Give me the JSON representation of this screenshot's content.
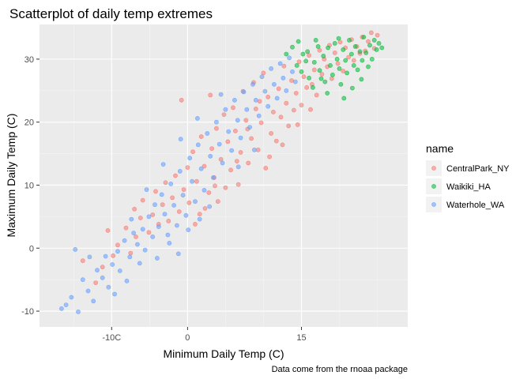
{
  "chart_data": {
    "type": "scatter",
    "title": "Scatterplot of daily temp extremes",
    "xlabel": "Minimum Daily Temp (C)",
    "ylabel": "Maximum Daily Temp (C)",
    "caption": "Data come from the rnoaa package",
    "xlim": [
      -19.5,
      29.0
    ],
    "ylim": [
      -12.5,
      35.5
    ],
    "x_ticks": [
      -10,
      0,
      15
    ],
    "x_tick_labels": [
      "-10C",
      "0",
      "15"
    ],
    "x_minor_ticks": [
      -15,
      -5,
      5,
      10,
      20,
      25
    ],
    "y_ticks": [
      -10,
      0,
      10,
      20,
      30
    ],
    "y_tick_labels": [
      "-10",
      "0",
      "10",
      "20",
      "30"
    ],
    "y_minor_ticks": [
      -5,
      5,
      15,
      25
    ],
    "grid": true,
    "legend": {
      "title": "name",
      "placement": "right",
      "entries": [
        "CentralPark_NY",
        "Waikiki_HA",
        "Waterhole_WA"
      ]
    },
    "series": [
      {
        "name": "CentralPark_NY",
        "color": "#F8766D",
        "points": [
          [
            -13.8,
            -2.0
          ],
          [
            -12.1,
            -5.5
          ],
          [
            -11.2,
            -3.0
          ],
          [
            -10.5,
            2.8
          ],
          [
            -9.8,
            -1.2
          ],
          [
            -9.2,
            0.5
          ],
          [
            -8.1,
            3.2
          ],
          [
            -7.5,
            -0.8
          ],
          [
            -7.0,
            6.2
          ],
          [
            -6.8,
            1.8
          ],
          [
            -6.2,
            4.8
          ],
          [
            -5.9,
            7.6
          ],
          [
            -5.1,
            2.5
          ],
          [
            -4.6,
            5.3
          ],
          [
            -4.2,
            9.0
          ],
          [
            -3.8,
            3.8
          ],
          [
            -3.3,
            6.9
          ],
          [
            -2.9,
            10.4
          ],
          [
            -2.5,
            4.3
          ],
          [
            -2.0,
            8.0
          ],
          [
            -1.6,
            11.5
          ],
          [
            -1.1,
            5.8
          ],
          [
            -0.8,
            23.5
          ],
          [
            -0.5,
            9.3
          ],
          [
            0.0,
            12.8
          ],
          [
            0.2,
            7.2
          ],
          [
            0.7,
            15.3
          ],
          [
            1.0,
            3.8
          ],
          [
            1.2,
            10.6
          ],
          [
            1.6,
            5.4
          ],
          [
            1.8,
            17.7
          ],
          [
            2.2,
            13.0
          ],
          [
            2.3,
            6.3
          ],
          [
            2.8,
            8.8
          ],
          [
            3.0,
            24.3
          ],
          [
            3.2,
            15.8
          ],
          [
            3.5,
            11.2
          ],
          [
            3.8,
            19.0
          ],
          [
            4.0,
            7.4
          ],
          [
            4.4,
            14.1
          ],
          [
            4.8,
            21.2
          ],
          [
            5.0,
            9.6
          ],
          [
            5.3,
            16.9
          ],
          [
            5.7,
            12.4
          ],
          [
            6.0,
            22.3
          ],
          [
            6.3,
            18.6
          ],
          [
            6.7,
            10.1
          ],
          [
            7.0,
            15.2
          ],
          [
            7.3,
            24.9
          ],
          [
            7.7,
            20.3
          ],
          [
            8.0,
            13.5
          ],
          [
            8.4,
            17.4
          ],
          [
            8.7,
            26.3
          ],
          [
            9.0,
            22.1
          ],
          [
            9.3,
            15.6
          ],
          [
            9.7,
            19.9
          ],
          [
            10.0,
            27.8
          ],
          [
            10.3,
            12.7
          ],
          [
            10.6,
            24.0
          ],
          [
            11.0,
            18.2
          ],
          [
            11.3,
            21.6
          ],
          [
            11.7,
            17.0
          ],
          [
            12.0,
            25.3
          ],
          [
            12.3,
            20.8
          ],
          [
            12.7,
            28.9
          ],
          [
            13.0,
            23.0
          ],
          [
            13.3,
            19.4
          ],
          [
            13.7,
            26.6
          ],
          [
            14.0,
            21.9
          ],
          [
            14.3,
            24.6
          ],
          [
            14.7,
            29.6
          ],
          [
            15.0,
            22.7
          ],
          [
            15.3,
            27.2
          ],
          [
            15.7,
            25.5
          ],
          [
            16.0,
            30.6
          ],
          [
            16.4,
            26.0
          ],
          [
            16.7,
            28.3
          ],
          [
            17.0,
            24.3
          ],
          [
            17.4,
            31.4
          ],
          [
            17.7,
            27.6
          ],
          [
            18.0,
            30.0
          ],
          [
            18.4,
            28.8
          ],
          [
            18.7,
            32.2
          ],
          [
            19.0,
            26.9
          ],
          [
            19.4,
            31.0
          ],
          [
            19.8,
            29.3
          ],
          [
            20.1,
            32.7
          ],
          [
            20.5,
            28.1
          ],
          [
            20.8,
            31.8
          ],
          [
            21.2,
            30.3
          ],
          [
            21.6,
            33.1
          ],
          [
            21.9,
            29.8
          ],
          [
            22.3,
            32.0
          ],
          [
            22.7,
            30.9
          ],
          [
            23.0,
            33.5
          ],
          [
            23.4,
            31.3
          ],
          [
            23.8,
            32.8
          ],
          [
            24.2,
            34.2
          ],
          [
            24.6,
            31.7
          ],
          [
            25.0,
            33.8
          ],
          [
            9.5,
            23.3
          ],
          [
            6.5,
            13.8
          ],
          [
            3.6,
            9.9
          ],
          [
            12.5,
            16.4
          ],
          [
            7.9,
            18.9
          ],
          [
            14.5,
            19.6
          ],
          [
            16.2,
            22.0
          ],
          [
            10.8,
            14.5
          ]
        ]
      },
      {
        "name": "Waikiki_HA",
        "color": "#00BA38",
        "points": [
          [
            13.0,
            30.8
          ],
          [
            13.8,
            31.9
          ],
          [
            14.4,
            29.0
          ],
          [
            15.0,
            28.0
          ],
          [
            15.2,
            30.8
          ],
          [
            15.8,
            31.2
          ],
          [
            16.0,
            27.0
          ],
          [
            16.5,
            25.5
          ],
          [
            16.7,
            29.5
          ],
          [
            17.2,
            32.0
          ],
          [
            17.4,
            28.2
          ],
          [
            17.9,
            30.5
          ],
          [
            18.1,
            26.4
          ],
          [
            18.5,
            31.8
          ],
          [
            18.8,
            29.0
          ],
          [
            19.1,
            27.5
          ],
          [
            19.4,
            32.5
          ],
          [
            19.7,
            30.0
          ],
          [
            20.0,
            28.5
          ],
          [
            20.2,
            26.0
          ],
          [
            20.5,
            31.5
          ],
          [
            20.8,
            29.8
          ],
          [
            21.0,
            27.8
          ],
          [
            21.3,
            33.0
          ],
          [
            21.6,
            30.8
          ],
          [
            21.9,
            29.0
          ],
          [
            22.1,
            32.0
          ],
          [
            22.4,
            28.3
          ],
          [
            22.7,
            31.2
          ],
          [
            23.0,
            29.8
          ],
          [
            23.2,
            33.5
          ],
          [
            23.5,
            31.0
          ],
          [
            23.8,
            28.8
          ],
          [
            24.0,
            32.2
          ],
          [
            24.3,
            30.0
          ],
          [
            24.6,
            33.0
          ],
          [
            24.9,
            31.5
          ],
          [
            25.2,
            32.5
          ],
          [
            25.6,
            31.8
          ],
          [
            18.4,
            24.6
          ],
          [
            20.6,
            23.8
          ],
          [
            16.9,
            33.0
          ],
          [
            14.6,
            32.8
          ],
          [
            19.9,
            33.3
          ],
          [
            22.9,
            26.8
          ],
          [
            17.6,
            26.9
          ],
          [
            21.7,
            25.4
          ],
          [
            15.6,
            29.7
          ]
        ]
      },
      {
        "name": "Waterhole_WA",
        "color": "#619CFF",
        "points": [
          [
            -16.6,
            -9.6
          ],
          [
            -16.0,
            -9.0
          ],
          [
            -15.3,
            -7.8
          ],
          [
            -14.4,
            -10.1
          ],
          [
            -13.8,
            -5.0
          ],
          [
            -13.1,
            -6.8
          ],
          [
            -12.4,
            -8.4
          ],
          [
            -11.9,
            -3.5
          ],
          [
            -11.2,
            -4.7
          ],
          [
            -10.8,
            -1.3
          ],
          [
            -10.4,
            -6.2
          ],
          [
            -9.9,
            -2.6
          ],
          [
            -9.2,
            -0.5
          ],
          [
            -8.9,
            -3.6
          ],
          [
            -8.3,
            1.2
          ],
          [
            -7.6,
            -1.4
          ],
          [
            -7.1,
            2.4
          ],
          [
            -6.6,
            0.6
          ],
          [
            -5.9,
            3.0
          ],
          [
            -5.6,
            -0.3
          ],
          [
            -5.1,
            5.0
          ],
          [
            -4.6,
            1.8
          ],
          [
            -4.3,
            6.9
          ],
          [
            -3.8,
            3.4
          ],
          [
            -3.4,
            8.5
          ],
          [
            -3.0,
            5.4
          ],
          [
            -2.6,
            2.1
          ],
          [
            -2.2,
            10.2
          ],
          [
            -1.8,
            6.8
          ],
          [
            -1.4,
            3.6
          ],
          [
            -1.0,
            12.2
          ],
          [
            -0.6,
            8.4
          ],
          [
            -0.2,
            5.2
          ],
          [
            0.3,
            14.3
          ],
          [
            0.6,
            10.6
          ],
          [
            1.0,
            7.4
          ],
          [
            1.4,
            16.4
          ],
          [
            1.8,
            12.6
          ],
          [
            2.2,
            9.2
          ],
          [
            2.6,
            18.2
          ],
          [
            3.0,
            14.6
          ],
          [
            3.4,
            11.2
          ],
          [
            3.8,
            20.0
          ],
          [
            4.2,
            16.5
          ],
          [
            4.6,
            13.5
          ],
          [
            5.0,
            22.0
          ],
          [
            5.4,
            18.5
          ],
          [
            5.8,
            15.5
          ],
          [
            6.2,
            23.5
          ],
          [
            6.6,
            20.3
          ],
          [
            7.0,
            17.5
          ],
          [
            7.4,
            24.8
          ],
          [
            7.8,
            22.0
          ],
          [
            8.2,
            19.2
          ],
          [
            8.6,
            26.0
          ],
          [
            9.0,
            23.5
          ],
          [
            9.4,
            21.0
          ],
          [
            9.8,
            27.2
          ],
          [
            10.2,
            24.9
          ],
          [
            10.6,
            22.5
          ],
          [
            11.0,
            28.5
          ],
          [
            11.4,
            26.0
          ],
          [
            11.8,
            23.8
          ],
          [
            12.2,
            29.3
          ],
          [
            12.6,
            27.0
          ],
          [
            13.0,
            25.0
          ],
          [
            13.4,
            30.2
          ],
          [
            13.8,
            28.0
          ],
          [
            14.2,
            26.4
          ],
          [
            -6.3,
            -2.4
          ],
          [
            -8.0,
            -5.2
          ],
          [
            -4.0,
            -1.6
          ],
          [
            -2.4,
            0.8
          ],
          [
            0.1,
            2.9
          ],
          [
            -1.2,
            -0.9
          ],
          [
            1.6,
            4.6
          ],
          [
            2.9,
            6.6
          ],
          [
            -12.9,
            -1.4
          ],
          [
            -7.4,
            4.6
          ],
          [
            -3.2,
            13.3
          ],
          [
            4.4,
            24.4
          ],
          [
            6.7,
            12.9
          ],
          [
            -0.9,
            17.3
          ],
          [
            1.3,
            20.6
          ],
          [
            8.8,
            15.6
          ],
          [
            -5.4,
            9.3
          ],
          [
            -9.6,
            -7.3
          ],
          [
            -14.8,
            -0.2
          ]
        ]
      }
    ]
  }
}
